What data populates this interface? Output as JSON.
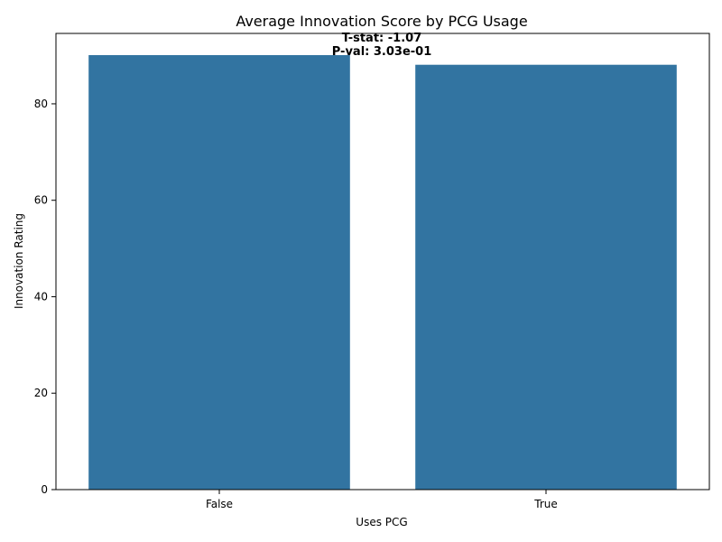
{
  "chart_data": {
    "type": "bar",
    "title": "Average Innovation Score by PCG Usage",
    "xlabel": "Uses PCG",
    "ylabel": "Innovation Rating",
    "categories": [
      "False",
      "True"
    ],
    "values": [
      90.1,
      88.1
    ],
    "ylim": [
      0,
      94.6
    ],
    "yticks": [
      0,
      20,
      40,
      60,
      80
    ],
    "grid": false,
    "legend": "none",
    "bar_color": "#3274a1",
    "annotation": {
      "line1": "T-stat: -1.07",
      "line2": "P-val: 3.03e-01"
    }
  }
}
